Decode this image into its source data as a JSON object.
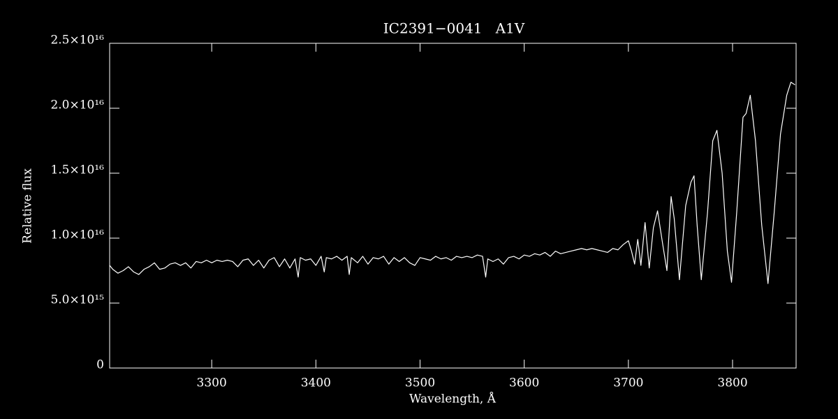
{
  "chart_data": {
    "type": "line",
    "title": "IC2391−0041   A1V",
    "xlabel": "Wavelength, Å",
    "ylabel": "Relative flux",
    "color": "#ffffff",
    "xlim": [
      3202,
      3861
    ],
    "ylim": [
      0,
      2.5e+16
    ],
    "xticks": [
      3300,
      3400,
      3500,
      3600,
      3700,
      3800
    ],
    "yticks": [
      0,
      {
        "value": 5000000000000000.0,
        "label": "5.0×10¹⁵"
      },
      {
        "value": 1e+16,
        "label": "1.0×10¹⁶"
      },
      {
        "value": 1.5e+16,
        "label": "1.5×10¹⁶"
      },
      {
        "value": 2e+16,
        "label": "2.0×10¹⁶"
      },
      {
        "value": 2.5e+16,
        "label": "2.5×10¹⁶"
      }
    ],
    "x": [
      3202,
      3205,
      3210,
      3215,
      3220,
      3225,
      3230,
      3235,
      3240,
      3245,
      3250,
      3255,
      3260,
      3265,
      3270,
      3275,
      3280,
      3285,
      3290,
      3295,
      3300,
      3305,
      3310,
      3315,
      3320,
      3325,
      3330,
      3335,
      3340,
      3345,
      3350,
      3355,
      3360,
      3365,
      3370,
      3375,
      3380,
      3383,
      3385,
      3390,
      3395,
      3400,
      3405,
      3408,
      3410,
      3415,
      3420,
      3425,
      3430,
      3432,
      3434,
      3440,
      3445,
      3450,
      3455,
      3460,
      3465,
      3470,
      3475,
      3480,
      3485,
      3490,
      3495,
      3500,
      3505,
      3510,
      3515,
      3520,
      3525,
      3530,
      3535,
      3540,
      3545,
      3550,
      3555,
      3560,
      3563,
      3565,
      3570,
      3575,
      3580,
      3585,
      3590,
      3595,
      3600,
      3605,
      3610,
      3615,
      3620,
      3625,
      3630,
      3635,
      3640,
      3645,
      3650,
      3655,
      3660,
      3665,
      3670,
      3675,
      3680,
      3685,
      3690,
      3695,
      3700,
      3703,
      3706,
      3709,
      3712,
      3716,
      3720,
      3724,
      3728,
      3733,
      3737,
      3741,
      3744,
      3749,
      3755,
      3760,
      3763,
      3766,
      3770,
      3776,
      3781,
      3785,
      3790,
      3795,
      3799,
      3804,
      3810,
      3813,
      3817,
      3822,
      3828,
      3834,
      3840,
      3846,
      3852,
      3856,
      3860
    ],
    "values": [
      7900000000000000.0,
      7600000000000000.0,
      7300000000000000.0,
      7500000000000000.0,
      7800000000000000.0,
      7400000000000000.0,
      7200000000000000.0,
      7600000000000000.0,
      7800000000000000.0,
      8100000000000000.0,
      7600000000000000.0,
      7700000000000000.0,
      8000000000000000.0,
      8100000000000000.0,
      7900000000000000.0,
      8100000000000000.0,
      7700000000000000.0,
      8200000000000000.0,
      8100000000000000.0,
      8300000000000000.0,
      8100000000000000.0,
      8300000000000000.0,
      8200000000000000.0,
      8300000000000000.0,
      8200000000000000.0,
      7800000000000000.0,
      8300000000000000.0,
      8400000000000000.0,
      7900000000000000.0,
      8300000000000000.0,
      7700000000000000.0,
      8300000000000000.0,
      8500000000000000.0,
      7800000000000000.0,
      8400000000000000.0,
      7700000000000000.0,
      8400000000000000.0,
      7000000000000000.0,
      8500000000000000.0,
      8300000000000000.0,
      8400000000000000.0,
      7900000000000000.0,
      8600000000000000.0,
      7400000000000000.0,
      8500000000000000.0,
      8400000000000000.0,
      8600000000000000.0,
      8300000000000000.0,
      8600000000000000.0,
      7200000000000000.0,
      8500000000000000.0,
      8100000000000000.0,
      8600000000000000.0,
      8000000000000000.0,
      8500000000000000.0,
      8400000000000000.0,
      8600000000000000.0,
      8000000000000000.0,
      8500000000000000.0,
      8200000000000000.0,
      8500000000000000.0,
      8100000000000000.0,
      7900000000000000.0,
      8500000000000000.0,
      8400000000000000.0,
      8300000000000000.0,
      8600000000000000.0,
      8400000000000000.0,
      8500000000000000.0,
      8300000000000000.0,
      8600000000000000.0,
      8500000000000000.0,
      8600000000000000.0,
      8500000000000000.0,
      8700000000000000.0,
      8600000000000000.0,
      7000000000000000.0,
      8400000000000000.0,
      8200000000000000.0,
      8400000000000000.0,
      8000000000000000.0,
      8500000000000000.0,
      8600000000000000.0,
      8400000000000000.0,
      8700000000000000.0,
      8600000000000000.0,
      8800000000000000.0,
      8700000000000000.0,
      8900000000000000.0,
      8600000000000000.0,
      9000000000000000.0,
      8800000000000000.0,
      8900000000000000.0,
      9000000000000000.0,
      9100000000000000.0,
      9200000000000000.0,
      9100000000000000.0,
      9200000000000000.0,
      9100000000000000.0,
      9000000000000000.0,
      8900000000000000.0,
      9200000000000000.0,
      9100000000000000.0,
      9500000000000000.0,
      9800000000000000.0,
      9000000000000000.0,
      8000000000000000.0,
      9900000000000000.0,
      7900000000000000.0,
      1.12e+16,
      7700000000000000.0,
      1.08e+16,
      1.21e+16,
      9500000000000000.0,
      7500000000000000.0,
      1.32e+16,
      1.15e+16,
      6800000000000000.0,
      1.25e+16,
      1.43e+16,
      1.48e+16,
      1.1e+16,
      6800000000000000.0,
      1.2e+16,
      1.75e+16,
      1.83e+16,
      1.5e+16,
      9000000000000000.0,
      6600000000000000.0,
      1.2e+16,
      1.93e+16,
      1.96e+16,
      2.1e+16,
      1.75e+16,
      1.1e+16,
      6500000000000000.0,
      1.2e+16,
      1.8e+16,
      2.1e+16,
      2.2e+16,
      2.18e+16
    ]
  }
}
